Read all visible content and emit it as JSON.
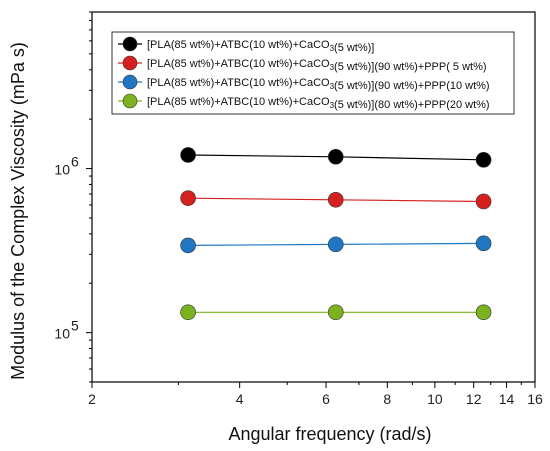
{
  "chart_data": {
    "type": "line",
    "xlabel": "Angular frequency (rad/s)",
    "ylabel": "Modulus of the Complex Viscosity (mPa s)",
    "x_scale": "log",
    "y_scale": "log",
    "xlim": [
      2,
      16
    ],
    "ylim": [
      50000,
      9000000
    ],
    "x_ticks": [
      {
        "value": 2,
        "label": "2"
      },
      {
        "value": 4,
        "label": "4"
      },
      {
        "value": 6,
        "label": "6"
      },
      {
        "value": 8,
        "label": "8"
      },
      {
        "value": 10,
        "label": "10"
      },
      {
        "value": 12,
        "label": "12"
      },
      {
        "value": 14,
        "label": "14"
      },
      {
        "value": 16,
        "label": "16"
      }
    ],
    "y_ticks": [
      {
        "value": 100000,
        "label": "10",
        "exp": "5"
      },
      {
        "value": 1000000,
        "label": "10",
        "exp": "6"
      }
    ],
    "legend_position": "top-left",
    "grid": false,
    "x": [
      3.14,
      6.28,
      12.57
    ],
    "series": [
      {
        "name": "[PLA(85 wt%)+ATBC(10 wt%)+CaCO3(5 wt%)]",
        "color": "#000000",
        "values": [
          1210000,
          1180000,
          1130000
        ]
      },
      {
        "name": "[PLA(85 wt%)+ATBC(10 wt%)+CaCO3(5 wt%)](90 wt%)+PPP( 5 wt%)",
        "color": "#d62020",
        "values": [
          660000,
          645000,
          630000
        ]
      },
      {
        "name": "[PLA(85 wt%)+ATBC(10 wt%)+CaCO3(5 wt%)](90 wt%)+PPP(10 wt%)",
        "color": "#1f77c4",
        "values": [
          340000,
          345000,
          350000
        ]
      },
      {
        "name": "[PLA(85 wt%)+ATBC(10 wt%)+CaCO3(5 wt%)](80 wt%)+PPP(20 wt%)",
        "color": "#7ab31e",
        "values": [
          133000,
          133000,
          133000
        ]
      }
    ]
  }
}
